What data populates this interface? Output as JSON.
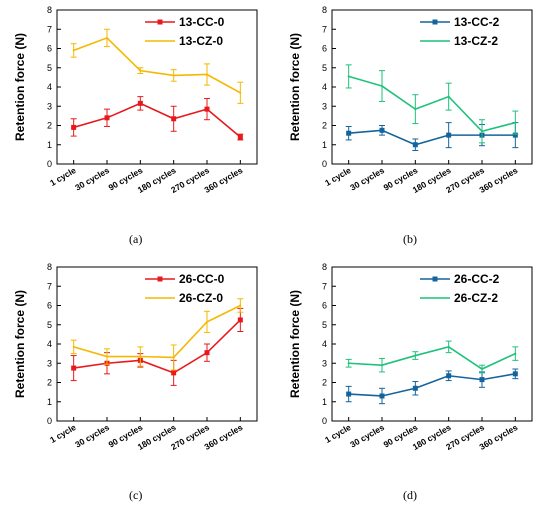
{
  "colors": {
    "red": "#e8191c",
    "gold": "#f5b800",
    "blue": "#14649c",
    "green": "#1cc27a"
  },
  "chart_data": [
    {
      "type": "line",
      "caption": "(a)",
      "ylabel": "Retention force (N)",
      "xlabel": "",
      "ylim": [
        0,
        8
      ],
      "yticks": [
        0,
        1,
        2,
        3,
        4,
        5,
        6,
        7,
        8
      ],
      "categories": [
        "1 cycle",
        "30 cycles",
        "90 cycles",
        "180 cycles",
        "270 cycles",
        "360 cycles"
      ],
      "legend_position": "top-right",
      "series": [
        {
          "name": "13-CC-0",
          "color": "#e8191c",
          "marker": "square",
          "values": [
            1.9,
            2.4,
            3.15,
            2.35,
            2.85,
            1.4
          ],
          "errors": [
            0.45,
            0.45,
            0.35,
            0.65,
            0.55,
            0.15
          ]
        },
        {
          "name": "13-CZ-0",
          "color": "#f5b800",
          "marker": "none",
          "values": [
            5.9,
            6.55,
            4.85,
            4.6,
            4.65,
            3.7
          ],
          "errors": [
            0.35,
            0.45,
            0.15,
            0.3,
            0.55,
            0.55
          ]
        }
      ]
    },
    {
      "type": "line",
      "caption": "(b)",
      "ylabel": "Retention force (N)",
      "xlabel": "",
      "ylim": [
        0,
        8
      ],
      "yticks": [
        0,
        1,
        2,
        3,
        4,
        5,
        6,
        7,
        8
      ],
      "categories": [
        "1 cycle",
        "30 cycles",
        "90 cycles",
        "180 cycles",
        "270 cycles",
        "360 cycles"
      ],
      "legend_position": "top-right",
      "series": [
        {
          "name": "13-CC-2",
          "color": "#14649c",
          "marker": "square",
          "values": [
            1.6,
            1.75,
            1.0,
            1.5,
            1.5,
            1.5
          ],
          "errors": [
            0.35,
            0.25,
            0.3,
            0.65,
            0.55,
            0.65
          ]
        },
        {
          "name": "13-CZ-2",
          "color": "#1cc27a",
          "marker": "none",
          "values": [
            4.55,
            4.05,
            2.85,
            3.5,
            1.7,
            2.15
          ],
          "errors": [
            0.6,
            0.8,
            0.75,
            0.7,
            0.6,
            0.6
          ]
        }
      ]
    },
    {
      "type": "line",
      "caption": "(c)",
      "ylabel": "Retention force (N)",
      "xlabel": "",
      "ylim": [
        0,
        8
      ],
      "yticks": [
        0,
        1,
        2,
        3,
        4,
        5,
        6,
        7,
        8
      ],
      "categories": [
        "1 cycle",
        "30 cycles",
        "90 cycles",
        "180 cycles",
        "270 cycles",
        "360 cycles"
      ],
      "legend_position": "top-right",
      "series": [
        {
          "name": "26-CC-0",
          "color": "#e8191c",
          "marker": "square",
          "values": [
            2.75,
            3.0,
            3.15,
            2.5,
            3.55,
            5.25
          ],
          "errors": [
            0.65,
            0.55,
            0.35,
            0.65,
            0.45,
            0.6
          ]
        },
        {
          "name": "26-CZ-0",
          "color": "#f5b800",
          "marker": "none",
          "values": [
            3.85,
            3.35,
            3.35,
            3.3,
            5.15,
            6.0
          ],
          "errors": [
            0.35,
            0.4,
            0.5,
            0.65,
            0.55,
            0.35
          ]
        }
      ]
    },
    {
      "type": "line",
      "caption": "(d)",
      "ylabel": "Retention force (N)",
      "xlabel": "",
      "ylim": [
        0,
        8
      ],
      "yticks": [
        0,
        1,
        2,
        3,
        4,
        5,
        6,
        7,
        8
      ],
      "categories": [
        "1 cycle",
        "30 cycles",
        "90 cycles",
        "180 cycles",
        "270 cycles",
        "360 cycles"
      ],
      "legend_position": "top-right",
      "series": [
        {
          "name": "26-CC-2",
          "color": "#14649c",
          "marker": "square",
          "values": [
            1.4,
            1.3,
            1.7,
            2.35,
            2.15,
            2.45
          ],
          "errors": [
            0.4,
            0.4,
            0.35,
            0.25,
            0.4,
            0.25
          ]
        },
        {
          "name": "26-CZ-2",
          "color": "#1cc27a",
          "marker": "none",
          "values": [
            3.0,
            2.9,
            3.4,
            3.85,
            2.7,
            3.5
          ],
          "errors": [
            0.2,
            0.35,
            0.2,
            0.3,
            0.2,
            0.35
          ]
        }
      ]
    }
  ]
}
